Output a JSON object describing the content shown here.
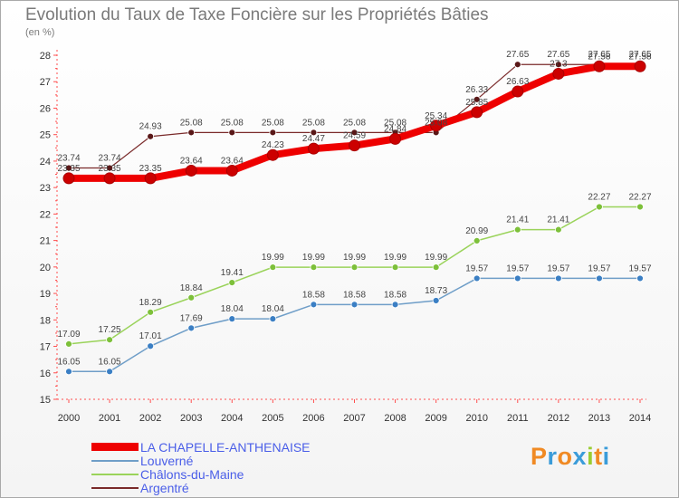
{
  "title": "Evolution du Taux de Taxe Foncière sur les Propriétés Bâties",
  "unit_label": "(en %)",
  "logo": {
    "letters": [
      "P",
      "r",
      "o",
      "x",
      "i",
      "t",
      "i"
    ],
    "colors": [
      "#f08a24",
      "#3b9cd9",
      "#f08a24",
      "#3b9cd9",
      "#9acd32",
      "#f08a24",
      "#3b9cd9"
    ]
  },
  "chart_data": {
    "type": "line",
    "x": [
      "2000",
      "2001",
      "2002",
      "2003",
      "2004",
      "2005",
      "2006",
      "2007",
      "2008",
      "2009",
      "2010",
      "2011",
      "2012",
      "2013",
      "2014"
    ],
    "ylim": [
      15,
      28
    ],
    "yticks": [
      "15",
      "16",
      "17",
      "18",
      "19",
      "20",
      "21",
      "22",
      "23",
      "24",
      "25",
      "26",
      "27",
      "28"
    ],
    "grid": false,
    "legend_position": "bottom-left",
    "series": [
      {
        "name": "LA CHAPELLE-ANTHENAISE",
        "color": "#ee0000",
        "width": 8,
        "marker": "#cc0000",
        "values": [
          23.35,
          23.35,
          23.35,
          23.64,
          23.64,
          24.23,
          24.47,
          24.59,
          24.84,
          25.34,
          25.85,
          26.63,
          27.3,
          27.58,
          27.58
        ],
        "labels": [
          "23.35",
          "23.35",
          "23.35",
          "23.64",
          "23.64",
          "24.23",
          "24.47",
          "24.59",
          "24.84",
          "25.34",
          "25.85",
          "26.63",
          "27.3",
          "27.58",
          "27.58"
        ]
      },
      {
        "name": "Louverné",
        "color": "#6f9ec8",
        "width": 1.5,
        "marker": "#3b7fc4",
        "values": [
          16.05,
          16.05,
          17.01,
          17.69,
          18.04,
          18.04,
          18.58,
          18.58,
          18.58,
          18.73,
          19.57,
          19.57,
          19.57,
          19.57,
          19.57
        ],
        "labels": [
          "16.05",
          "16.05",
          "17.01",
          "17.69",
          "18.04",
          "18.04",
          "18.58",
          "18.58",
          "18.58",
          "18.73",
          "19.57",
          "19.57",
          "19.57",
          "19.57",
          "19.57"
        ]
      },
      {
        "name": "Châlons-du-Maine",
        "color": "#9ad35a",
        "width": 1.5,
        "marker": "#7dc03a",
        "values": [
          17.09,
          17.25,
          18.29,
          18.84,
          19.41,
          19.99,
          19.99,
          19.99,
          19.99,
          19.99,
          20.99,
          21.41,
          21.41,
          22.27,
          22.27
        ],
        "labels": [
          "17.09",
          "17.25",
          "18.29",
          "18.84",
          "19.41",
          "19.99",
          "19.99",
          "19.99",
          "19.99",
          "19.99",
          "20.99",
          "21.41",
          "21.41",
          "22.27",
          "22.27"
        ]
      },
      {
        "name": "Argentré",
        "color": "#7a2a2a",
        "width": 1.2,
        "marker": "#5a1818",
        "values": [
          23.74,
          23.74,
          24.93,
          25.08,
          25.08,
          25.08,
          25.08,
          25.08,
          25.08,
          25.08,
          26.33,
          27.65,
          27.65,
          27.65,
          27.65
        ],
        "labels": [
          "23.74",
          "23.74",
          "24.93",
          "25.08",
          "25.08",
          "25.08",
          "25.08",
          "25.08",
          "25.08",
          "25.08",
          "26.33",
          "27.65",
          "27.65",
          "27.65",
          "27.65"
        ]
      }
    ]
  }
}
